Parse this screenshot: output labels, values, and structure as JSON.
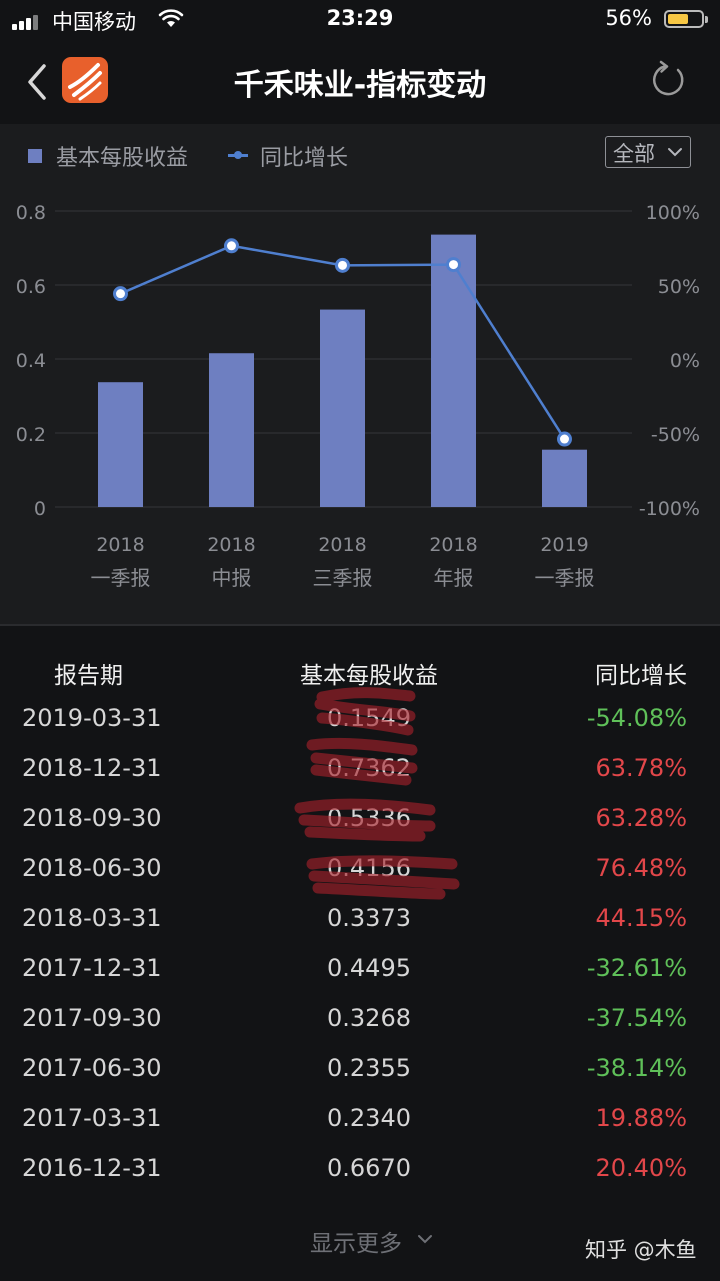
{
  "status_bar": {
    "carrier": "中国移动",
    "time": "23:29",
    "battery_pct": "56%"
  },
  "nav": {
    "title": "千禾味业-指标变动",
    "back_icon": "chevron-left-icon",
    "refresh_icon": "refresh-icon"
  },
  "legend": {
    "bar_label": "基本每股收益",
    "line_label": "同比增长"
  },
  "filter": {
    "label": "全部"
  },
  "colors": {
    "bar": "#6e7fc1",
    "line": "#4f7fcf",
    "positive": "#e2474a",
    "negative": "#5fc059",
    "accent_logo": "#e8602c"
  },
  "chart_data": {
    "type": "bar",
    "categories": [
      [
        "2018",
        "一季报"
      ],
      [
        "2018",
        "中报"
      ],
      [
        "2018",
        "三季报"
      ],
      [
        "2018",
        "年报"
      ],
      [
        "2019",
        "一季报"
      ]
    ],
    "series": [
      {
        "name": "基本每股收益",
        "type": "bar",
        "axis": "left",
        "values": [
          0.3373,
          0.4156,
          0.5336,
          0.7362,
          0.1549
        ]
      },
      {
        "name": "同比增长",
        "type": "line",
        "axis": "right",
        "values": [
          44.15,
          76.48,
          63.28,
          63.78,
          -54.08
        ]
      }
    ],
    "left_axis": {
      "ylim": [
        0,
        0.8
      ],
      "ticks": [
        "0",
        "0.2",
        "0.4",
        "0.6",
        "0.8"
      ]
    },
    "right_axis": {
      "ylim": [
        -100,
        100
      ],
      "ticks": [
        "-100%",
        "-50%",
        "0%",
        "50%",
        "100%"
      ]
    },
    "grid": true,
    "legend_position": "top-left"
  },
  "table": {
    "headers": [
      "报告期",
      "基本每股收益",
      "同比增长"
    ],
    "rows": [
      {
        "date": "2019-03-31",
        "eps": "0.1549",
        "yoy": "-54.08%",
        "dir": "neg"
      },
      {
        "date": "2018-12-31",
        "eps": "0.7362",
        "yoy": "63.78%",
        "dir": "pos"
      },
      {
        "date": "2018-09-30",
        "eps": "0.5336",
        "yoy": "63.28%",
        "dir": "pos"
      },
      {
        "date": "2018-06-30",
        "eps": "0.4156",
        "yoy": "76.48%",
        "dir": "pos"
      },
      {
        "date": "2018-03-31",
        "eps": "0.3373",
        "yoy": "44.15%",
        "dir": "pos"
      },
      {
        "date": "2017-12-31",
        "eps": "0.4495",
        "yoy": "-32.61%",
        "dir": "neg"
      },
      {
        "date": "2017-09-30",
        "eps": "0.3268",
        "yoy": "-37.54%",
        "dir": "neg"
      },
      {
        "date": "2017-06-30",
        "eps": "0.2355",
        "yoy": "-38.14%",
        "dir": "neg"
      },
      {
        "date": "2017-03-31",
        "eps": "0.2340",
        "yoy": "19.88%",
        "dir": "pos"
      },
      {
        "date": "2016-12-31",
        "eps": "0.6670",
        "yoy": "20.40%",
        "dir": "pos"
      }
    ]
  },
  "show_more": {
    "label": "显示更多"
  },
  "watermark": {
    "text": "知乎 @木鱼"
  }
}
